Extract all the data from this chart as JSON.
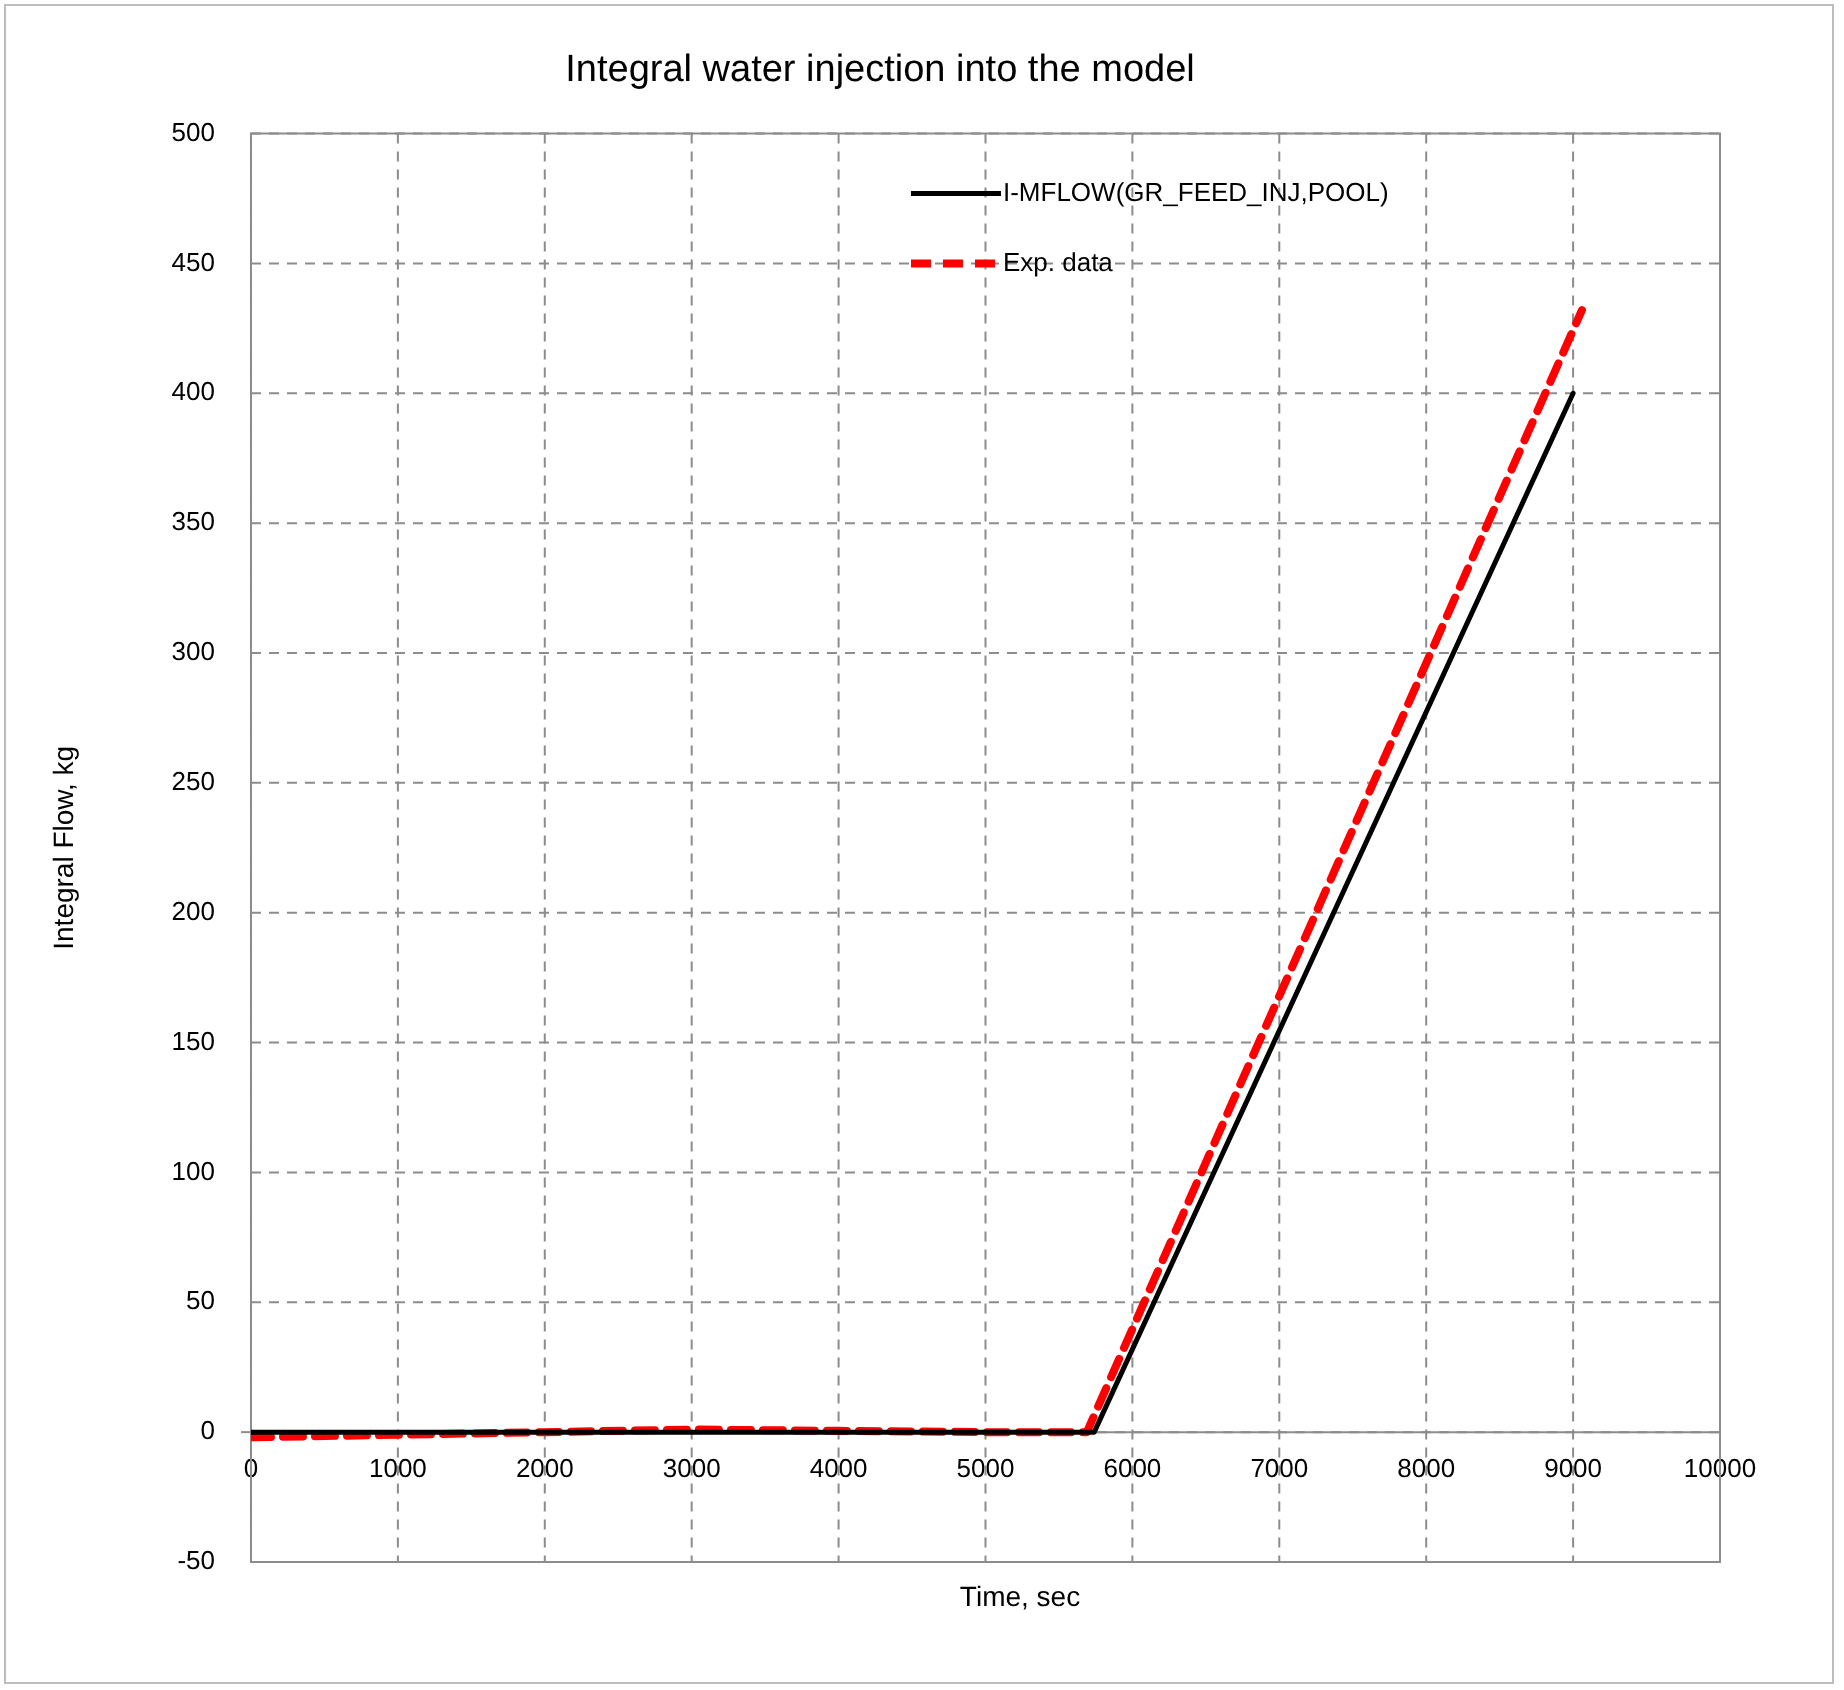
{
  "chart_data": {
    "type": "line",
    "title": "Integral water injection into the model",
    "xlabel": "Time, sec",
    "ylabel": "Integral Flow, kg",
    "xlim": [
      0,
      10000
    ],
    "xticks": [
      0,
      1000,
      2000,
      3000,
      4000,
      5000,
      6000,
      7000,
      8000,
      9000,
      10000
    ],
    "ylim": [
      -50,
      500
    ],
    "yticks": [
      -50,
      0,
      50,
      100,
      150,
      200,
      250,
      300,
      350,
      400,
      450,
      500
    ],
    "grid": true,
    "legend": "top",
    "marker": "none",
    "series": [
      {
        "name": "I-MFLOW(GR_FEED_INJ,POOL)",
        "color": "#000000",
        "line_style": "solid",
        "x": [
          0,
          5740,
          9000
        ],
        "values": [
          0,
          0,
          400
        ]
      },
      {
        "name": "Exp. data",
        "color": "#ff0000",
        "line_style": "dashed",
        "x": [
          0,
          1000,
          2000,
          3000,
          4000,
          5000,
          5690,
          9060
        ],
        "values": [
          -2,
          -1,
          0,
          1,
          0.5,
          0,
          0,
          432
        ]
      }
    ]
  }
}
